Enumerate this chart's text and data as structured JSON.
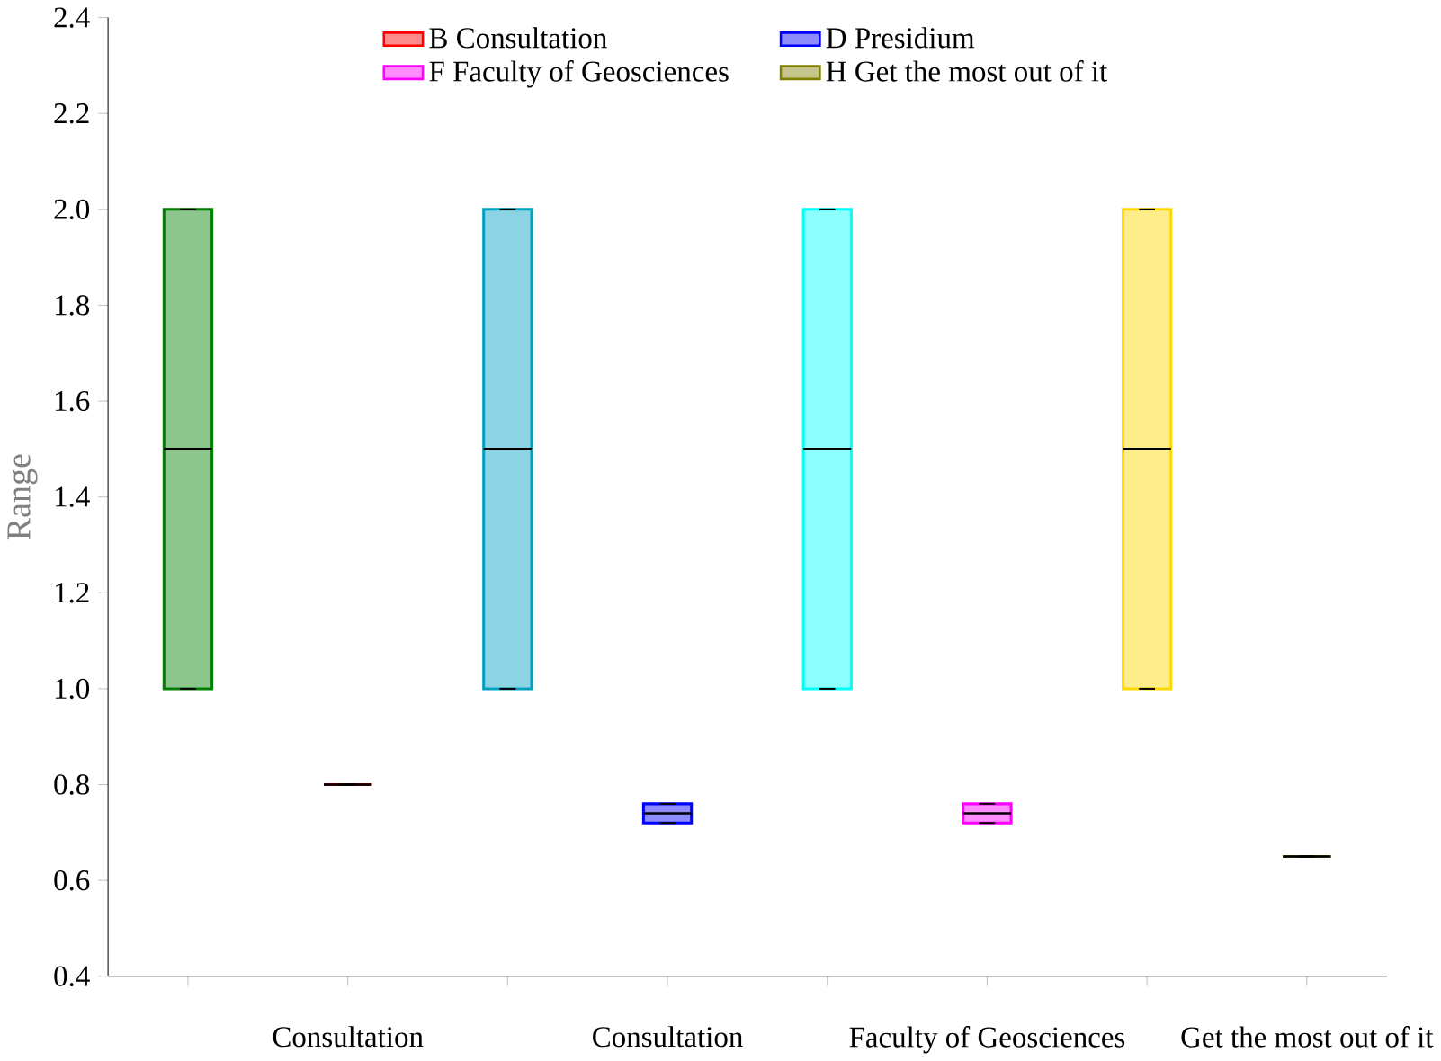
{
  "chart_data": {
    "type": "box",
    "ylabel": "Range",
    "categories": [
      null,
      "Consultation",
      null,
      "Consultation",
      null,
      "Faculty of Geosciences",
      null,
      "Get the most out of it"
    ],
    "ylim": [
      0.4,
      2.4
    ],
    "yticks": [
      0.4,
      0.6,
      0.8,
      {
        "value": 1.0,
        "label": "1.0"
      },
      1.2,
      1.4,
      1.6,
      1.8,
      {
        "value": 2.0,
        "label": "2.0"
      },
      2.2,
      2.4
    ],
    "legend": "top",
    "grid": false,
    "series": [
      {
        "color": "#008000",
        "boxes": [
          {
            "low": 1.0,
            "q1": 1.0,
            "median": 1.5,
            "q3": 2.0,
            "high": 2.0
          },
          null,
          null,
          null,
          null,
          null,
          null,
          null
        ]
      },
      {
        "name": "B Consultation",
        "color": "#ff0000",
        "boxes": [
          null,
          {
            "low": 0.8,
            "q1": 0.8,
            "median": 0.8,
            "q3": 0.8,
            "high": 0.8
          },
          null,
          null,
          null,
          null,
          null,
          null
        ]
      },
      {
        "color": "#00a0c0",
        "boxes": [
          null,
          null,
          {
            "low": 1.0,
            "q1": 1.0,
            "median": 1.5,
            "q3": 2.0,
            "high": 2.0
          },
          null,
          null,
          null,
          null,
          null
        ]
      },
      {
        "name": "D Presidium",
        "color": "#0000ff",
        "boxes": [
          null,
          null,
          null,
          {
            "low": 0.72,
            "q1": 0.72,
            "median": 0.74,
            "q3": 0.76,
            "high": 0.76
          },
          null,
          null,
          null,
          null
        ]
      },
      {
        "color": "#00ffff",
        "boxes": [
          null,
          null,
          null,
          null,
          {
            "low": 1.0,
            "q1": 1.0,
            "median": 1.5,
            "q3": 2.0,
            "high": 2.0
          },
          null,
          null,
          null
        ]
      },
      {
        "name": "F Faculty of Geosciences",
        "color": "#ff00ff",
        "boxes": [
          null,
          null,
          null,
          null,
          null,
          {
            "low": 0.72,
            "q1": 0.72,
            "median": 0.74,
            "q3": 0.76,
            "high": 0.76
          },
          null,
          null
        ]
      },
      {
        "color": "#ffd700",
        "boxes": [
          null,
          null,
          null,
          null,
          null,
          null,
          {
            "low": 1.0,
            "q1": 1.0,
            "median": 1.5,
            "q3": 2.0,
            "high": 2.0
          },
          null
        ]
      },
      {
        "name": "H Get the most out of it",
        "color": "#808000",
        "boxes": [
          null,
          null,
          null,
          null,
          null,
          null,
          null,
          {
            "low": 0.65,
            "q1": 0.65,
            "median": 0.65,
            "q3": 0.65,
            "high": 0.65
          }
        ]
      }
    ]
  }
}
